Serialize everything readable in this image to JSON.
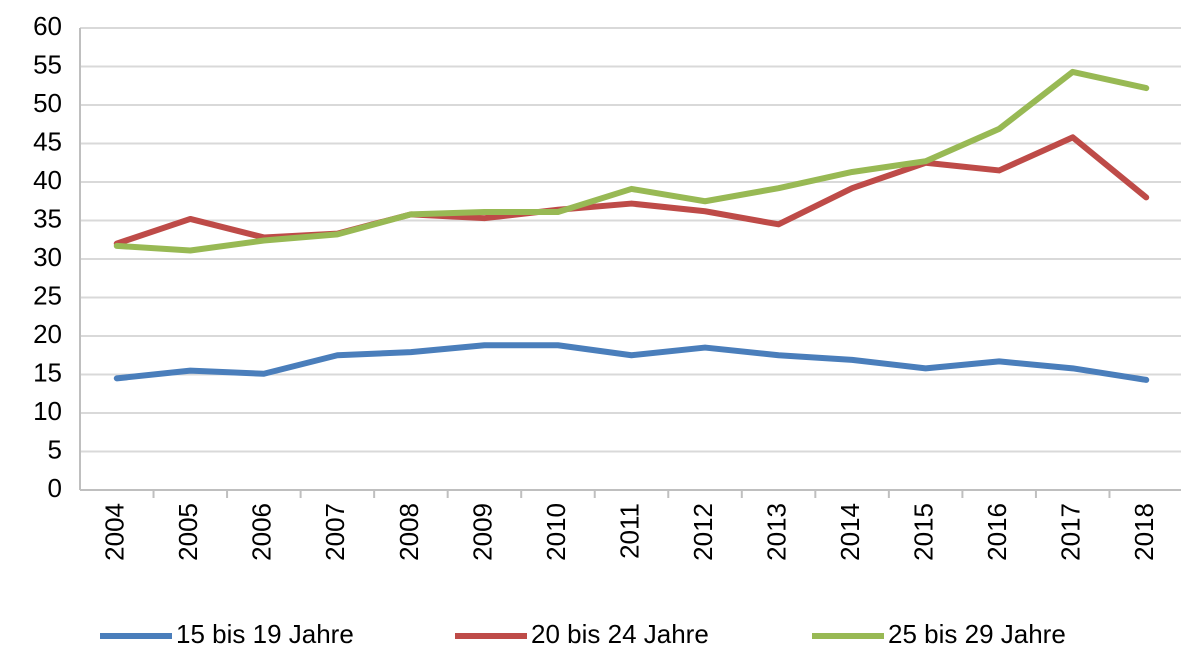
{
  "chart_data": {
    "type": "line",
    "categories": [
      "2004",
      "2005",
      "2006",
      "2007",
      "2008",
      "2009",
      "2010",
      "2011",
      "2012",
      "2013",
      "2014",
      "2015",
      "2016",
      "2017",
      "2018"
    ],
    "series": [
      {
        "name": "15 bis 19 Jahre",
        "color": "#4a7ebb",
        "values": [
          14.5,
          15.5,
          15.1,
          17.5,
          17.9,
          18.8,
          18.8,
          17.5,
          18.5,
          17.5,
          16.9,
          15.8,
          16.7,
          15.8,
          14.3
        ]
      },
      {
        "name": "20 bis 24 Jahre",
        "color": "#be4b48",
        "values": [
          32.0,
          35.2,
          32.8,
          33.3,
          35.8,
          35.3,
          36.4,
          37.2,
          36.2,
          34.5,
          39.2,
          42.5,
          41.5,
          45.8,
          38.0
        ]
      },
      {
        "name": "25 bis 29 Jahre",
        "color": "#98b954",
        "values": [
          31.7,
          31.1,
          32.4,
          33.2,
          35.8,
          36.1,
          36.1,
          39.1,
          37.5,
          39.2,
          41.3,
          42.7,
          46.9,
          54.3,
          52.2
        ]
      }
    ],
    "ylim": [
      0,
      60
    ],
    "yticks": [
      0,
      5,
      10,
      15,
      20,
      25,
      30,
      35,
      40,
      45,
      50,
      55,
      60
    ],
    "grid": true,
    "legend": "bottom"
  }
}
